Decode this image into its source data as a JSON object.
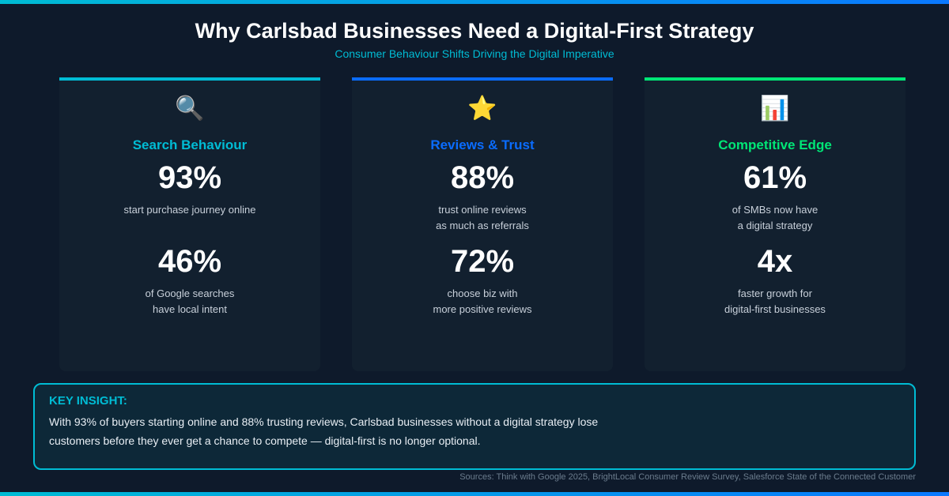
{
  "title": "Why Carlsbad Businesses Need a Digital-First Strategy",
  "subtitle": "Consumer Behaviour Shifts Driving the Digital Imperative",
  "cards": [
    {
      "icon": "magnifying-glass",
      "glyph": "🔍",
      "color": "#00bcd4",
      "title": "Search Behaviour",
      "stat1": "93%",
      "desc1": "start purchase journey online",
      "stat2": "46%",
      "desc2": "of Google searches\nhave local intent"
    },
    {
      "icon": "star",
      "glyph": "⭐",
      "color": "#0a6cff",
      "title": "Reviews & Trust",
      "stat1": "88%",
      "desc1": "trust online reviews\nas much as referrals",
      "stat2": "72%",
      "desc2": "choose biz with\nmore positive reviews"
    },
    {
      "icon": "bar-chart",
      "glyph": "📊",
      "color": "#00e676",
      "title": "Competitive Edge",
      "stat1": "61%",
      "desc1": "of SMBs now have\na digital strategy",
      "stat2": "4x",
      "desc2": "faster growth for\ndigital-first businesses"
    }
  ],
  "insight": {
    "label": "KEY INSIGHT:",
    "text": "With 93% of buyers starting online and 88% trusting reviews, Carlsbad businesses without a digital strategy lose customers before they ever get a chance to compete — digital-first is no longer optional."
  },
  "sources": "Sources: Think with Google 2025, BrightLocal Consumer Review Survey, Salesforce State of the Connected Customer"
}
